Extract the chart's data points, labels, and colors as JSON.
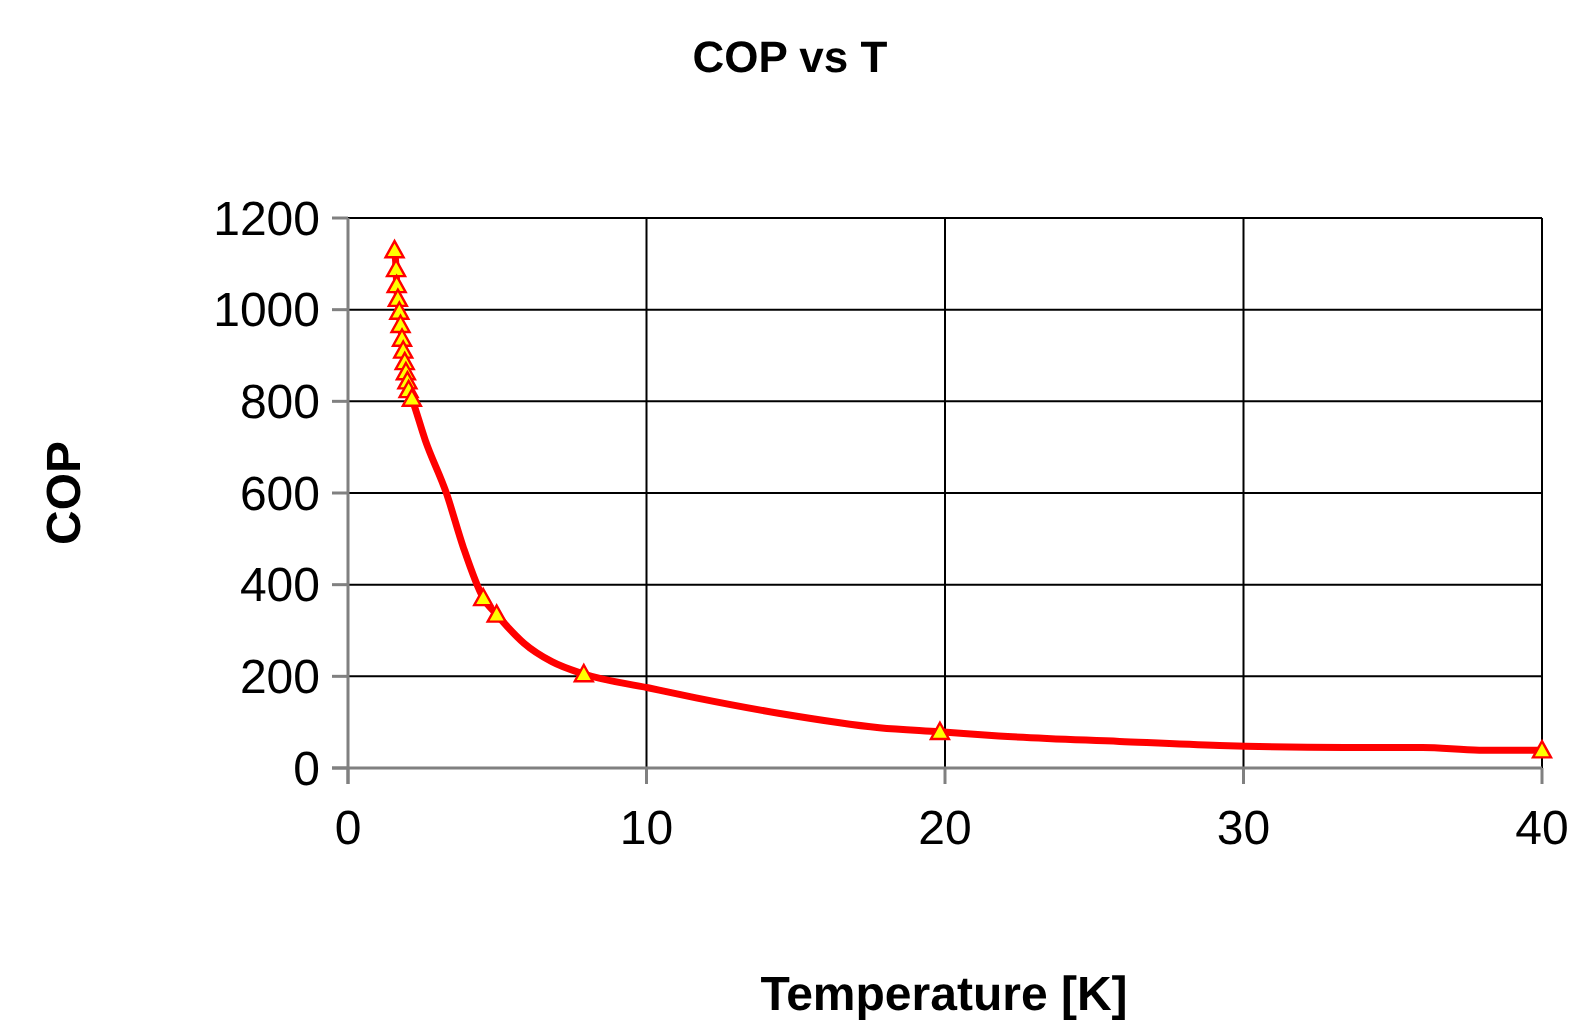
{
  "chart_data": {
    "type": "line",
    "title": "COP vs T",
    "xlabel": "Temperature [K]",
    "ylabel": "COP",
    "xlim": [
      0,
      40
    ],
    "xticks": [
      0,
      10,
      20,
      30,
      40
    ],
    "ylim": [
      0,
      1200
    ],
    "yticks": [
      0,
      200,
      400,
      600,
      800,
      1000,
      1200
    ],
    "grid": true,
    "series": [
      {
        "color": "#ff0000",
        "marker": "none",
        "x": [
          1.56,
          1.61,
          1.63,
          1.67,
          1.72,
          1.76,
          1.81,
          1.85,
          1.9,
          1.94,
          1.99,
          2.03,
          2.14,
          2.59,
          3.3,
          3.86,
          4.53,
          4.98,
          5.36,
          5.9,
          6.83,
          7.9,
          10.05,
          11.66,
          14.47,
          17.8,
          19.83,
          21.8,
          25.85,
          29.2,
          33.4,
          36,
          37.9,
          40
        ],
        "values": [
          1130,
          1089,
          1054,
          1024,
          996,
          967,
          937,
          911,
          886,
          864,
          844,
          825,
          806,
          715,
          599,
          482,
          371,
          335,
          307,
          272,
          232,
          205,
          175,
          153,
          119,
          88,
          79,
          70,
          58,
          49,
          45,
          45,
          39,
          39
        ]
      },
      {
        "type": "scatter",
        "color": "#ffff00",
        "marker": "triangle",
        "x": [
          1.56,
          1.61,
          1.63,
          1.67,
          1.72,
          1.76,
          1.81,
          1.85,
          1.9,
          1.94,
          1.99,
          2.03,
          2.14,
          4.53,
          4.98,
          7.9,
          19.83,
          40
        ],
        "values": [
          1130,
          1089,
          1054,
          1024,
          996,
          967,
          937,
          911,
          886,
          864,
          844,
          825,
          806,
          371,
          335,
          205,
          79,
          39
        ]
      }
    ]
  }
}
